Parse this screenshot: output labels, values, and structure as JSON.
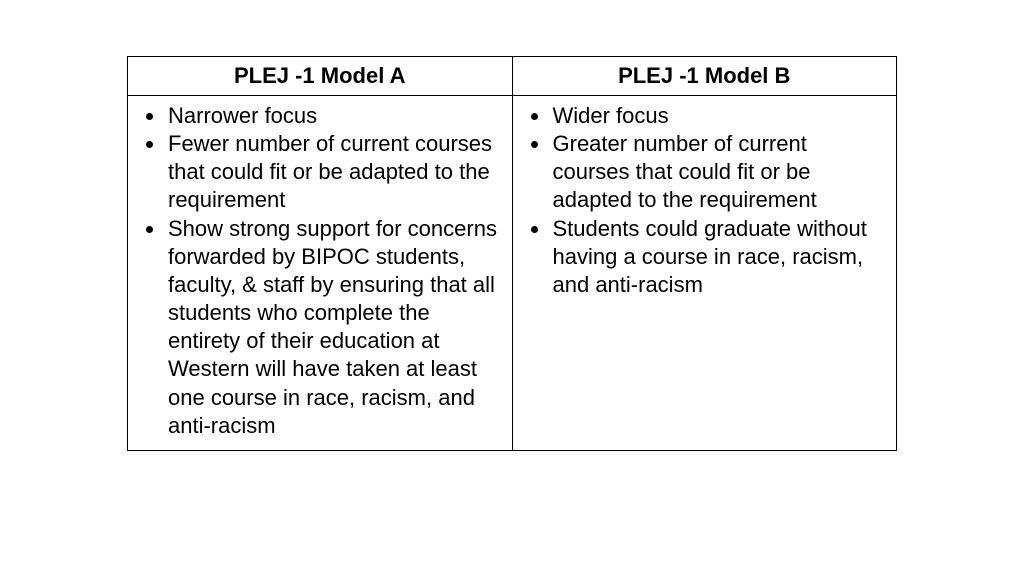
{
  "comparison_table": {
    "type": "table",
    "columns": [
      {
        "header": "PLEJ -1 Model A",
        "width_pct": 50,
        "align": "center"
      },
      {
        "header": "PLEJ -1 Model B",
        "width_pct": 50,
        "align": "center"
      }
    ],
    "rows": [
      {
        "cells": [
          {
            "bullets": [
              "Narrower focus",
              "Fewer number of current courses that could fit or be adapted to the requirement",
              "Show strong support for concerns forwarded by BIPOC students, faculty, & staff by ensuring that all students who complete the entirety of their education at Western will have taken at least one course in race, racism, and anti-racism"
            ]
          },
          {
            "bullets": [
              "Wider focus",
              "Greater number of current courses that could fit or be adapted to the requirement",
              "Students could graduate without having a course in race, racism, and anti-racism"
            ]
          }
        ]
      }
    ],
    "border_color": "#000000",
    "background_color": "#ffffff",
    "header_fontsize": 22,
    "header_fontweight": 700,
    "body_fontsize": 22,
    "line_height": 1.28,
    "text_color": "#000000",
    "bullet_style": "disc"
  }
}
